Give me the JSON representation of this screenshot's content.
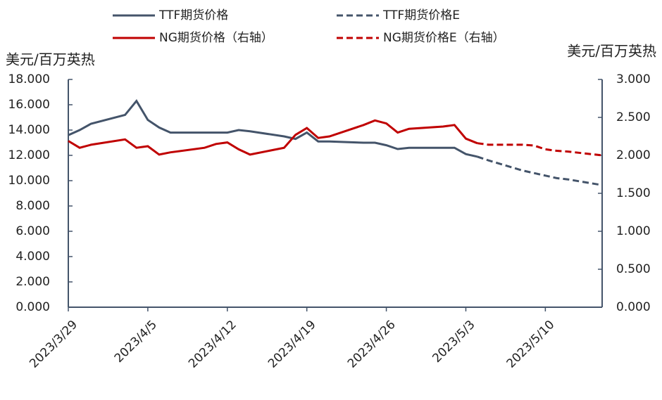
{
  "chart_data": {
    "type": "line",
    "y_label": "美元/百万英热",
    "y2_label": "美元/百万英热",
    "x": [
      "2023/3/29",
      "2023/3/30",
      "2023/3/31",
      "2023/4/3",
      "2023/4/4",
      "2023/4/5",
      "2023/4/6",
      "2023/4/7",
      "2023/4/10",
      "2023/4/11",
      "2023/4/12",
      "2023/4/13",
      "2023/4/14",
      "2023/4/17",
      "2023/4/18",
      "2023/4/19",
      "2023/4/20",
      "2023/4/21",
      "2023/4/24",
      "2023/4/25",
      "2023/4/26",
      "2023/4/27",
      "2023/4/28",
      "2023/5/1",
      "2023/5/2",
      "2023/5/3",
      "2023/5/4",
      "2023/5/5",
      "2023/5/8",
      "2023/5/9",
      "2023/5/10",
      "2023/5/11",
      "2023/5/12",
      "2023/5/15"
    ],
    "xlim": [
      "2023/3/29",
      "2023/5/15"
    ],
    "xticks": [
      "2023/3/29",
      "2023/4/5",
      "2023/4/12",
      "2023/4/19",
      "2023/4/26",
      "2023/5/3",
      "2023/5/10"
    ],
    "ylim": [
      0,
      18
    ],
    "yticks": [
      {
        "value": 0,
        "label": "0.000"
      },
      {
        "value": 2,
        "label": "2.000"
      },
      {
        "value": 4,
        "label": "4.000"
      },
      {
        "value": 6,
        "label": "6.000"
      },
      {
        "value": 8,
        "label": "8.000"
      },
      {
        "value": 10,
        "label": "10.000"
      },
      {
        "value": 12,
        "label": "12.000"
      },
      {
        "value": 14,
        "label": "14.000"
      },
      {
        "value": 16,
        "label": "16.000"
      },
      {
        "value": 18,
        "label": "18.000"
      }
    ],
    "y2lim": [
      0,
      3
    ],
    "y2ticks": [
      {
        "value": 0,
        "label": "0.000"
      },
      {
        "value": 0.5,
        "label": "0.500"
      },
      {
        "value": 1,
        "label": "1.000"
      },
      {
        "value": 1.5,
        "label": "1.500"
      },
      {
        "value": 2,
        "label": "2.000"
      },
      {
        "value": 2.5,
        "label": "2.500"
      },
      {
        "value": 3,
        "label": "3.000"
      }
    ],
    "series": [
      {
        "name": "TTF期货价格",
        "color": "#44546a",
        "dashed": false,
        "values": [
          13.6,
          14.0,
          14.5,
          15.2,
          16.3,
          14.8,
          14.2,
          13.8,
          13.8,
          13.8,
          13.8,
          14.0,
          13.9,
          13.5,
          13.3,
          13.8,
          13.1,
          13.1,
          13.0,
          13.0,
          12.8,
          12.5,
          12.6,
          12.6,
          12.6,
          12.1,
          11.9,
          null,
          null,
          null,
          null,
          null,
          null,
          null
        ]
      },
      {
        "name": "TTF期货价格E",
        "color": "#44546a",
        "dashed": true,
        "values": [
          null,
          null,
          null,
          null,
          null,
          null,
          null,
          null,
          null,
          null,
          null,
          null,
          null,
          null,
          null,
          null,
          null,
          null,
          null,
          null,
          null,
          null,
          null,
          null,
          null,
          null,
          11.9,
          11.6,
          10.8,
          10.6,
          10.4,
          10.2,
          10.1,
          9.65
        ]
      },
      {
        "name": "NG期货价格（右轴）",
        "color": "#c00000",
        "dashed": false,
        "axis": "y2",
        "values": [
          2.19,
          2.1,
          2.14,
          2.21,
          2.1,
          2.12,
          2.01,
          2.04,
          2.1,
          2.15,
          2.17,
          2.08,
          2.01,
          2.1,
          2.27,
          2.36,
          2.23,
          2.25,
          2.4,
          2.46,
          2.42,
          2.3,
          2.35,
          2.38,
          2.4,
          2.22,
          2.16,
          null,
          null,
          null,
          null,
          null,
          null,
          null
        ]
      },
      {
        "name": "NG期货价格E（右轴）",
        "color": "#c00000",
        "dashed": true,
        "axis": "y2",
        "values": [
          null,
          null,
          null,
          null,
          null,
          null,
          null,
          null,
          null,
          null,
          null,
          null,
          null,
          null,
          null,
          null,
          null,
          null,
          null,
          null,
          null,
          null,
          null,
          null,
          null,
          null,
          2.16,
          2.14,
          2.14,
          2.13,
          2.08,
          2.06,
          2.05,
          2.0
        ]
      }
    ]
  }
}
